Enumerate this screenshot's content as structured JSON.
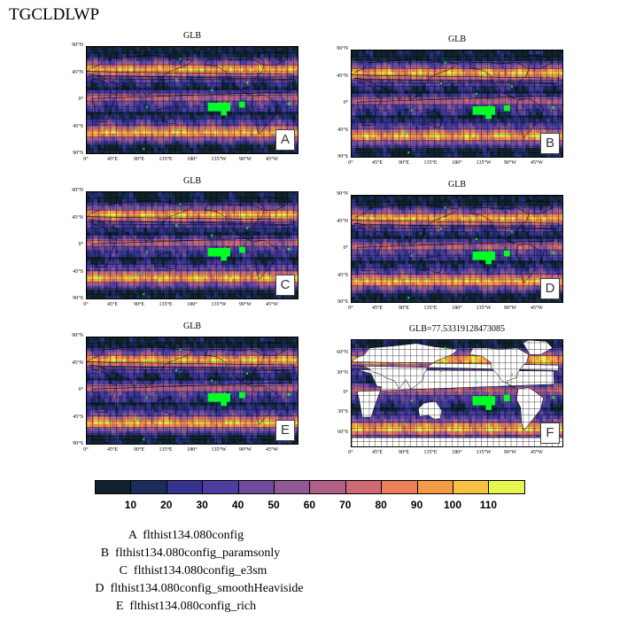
{
  "figure_title": "TGCLDLWP",
  "lat_labels": [
    "90°N",
    "45°N",
    "0°",
    "45°S",
    "90°S"
  ],
  "lon_labels": [
    "0°",
    "45°E",
    "90°E",
    "135°E",
    "180°",
    "135°W",
    "90°W",
    "45°W"
  ],
  "panel_f_lat_labels": [
    "60°N",
    "30°N",
    "0°",
    "30°S",
    "60°S"
  ],
  "colors": {
    "land_green": "#00ff22",
    "ocean_white": "#ffffff"
  },
  "chart_data": [
    {
      "type": "heatmap",
      "letter": "A",
      "title": "GLB",
      "map_type": "global",
      "variable": "TGCLDLWP"
    },
    {
      "type": "heatmap",
      "letter": "B",
      "title": "GLB",
      "map_type": "global",
      "variable": "TGCLDLWP"
    },
    {
      "type": "heatmap",
      "letter": "C",
      "title": "GLB",
      "map_type": "global",
      "variable": "TGCLDLWP"
    },
    {
      "type": "heatmap",
      "letter": "D",
      "title": "GLB",
      "map_type": "global",
      "variable": "TGCLDLWP"
    },
    {
      "type": "heatmap",
      "letter": "E",
      "title": "GLB",
      "map_type": "global",
      "variable": "TGCLDLWP"
    },
    {
      "type": "heatmap",
      "letter": "F",
      "title": "GLB=77.53319128473085",
      "map_type": "ocean_only",
      "variable": "TGCLDLWP"
    }
  ],
  "colorbar": {
    "levels": [
      "10",
      "20",
      "30",
      "40",
      "50",
      "60",
      "70",
      "80",
      "90",
      "100",
      "110"
    ],
    "colors": [
      "#10232d",
      "#1b2c5d",
      "#34338f",
      "#4c3da1",
      "#6f4c9b",
      "#8f5a93",
      "#b05f86",
      "#cf6a74",
      "#ea7f5a",
      "#f59b45",
      "#f7c142",
      "#e6f550"
    ]
  },
  "legend": [
    "A  flthist134.080config",
    "B  flthist134.080config_paramsonly",
    "C  flthist134.080config_e3sm",
    "D  flthist134.080config_smoothHeaviside",
    "E  flthist134.080config_rich"
  ]
}
